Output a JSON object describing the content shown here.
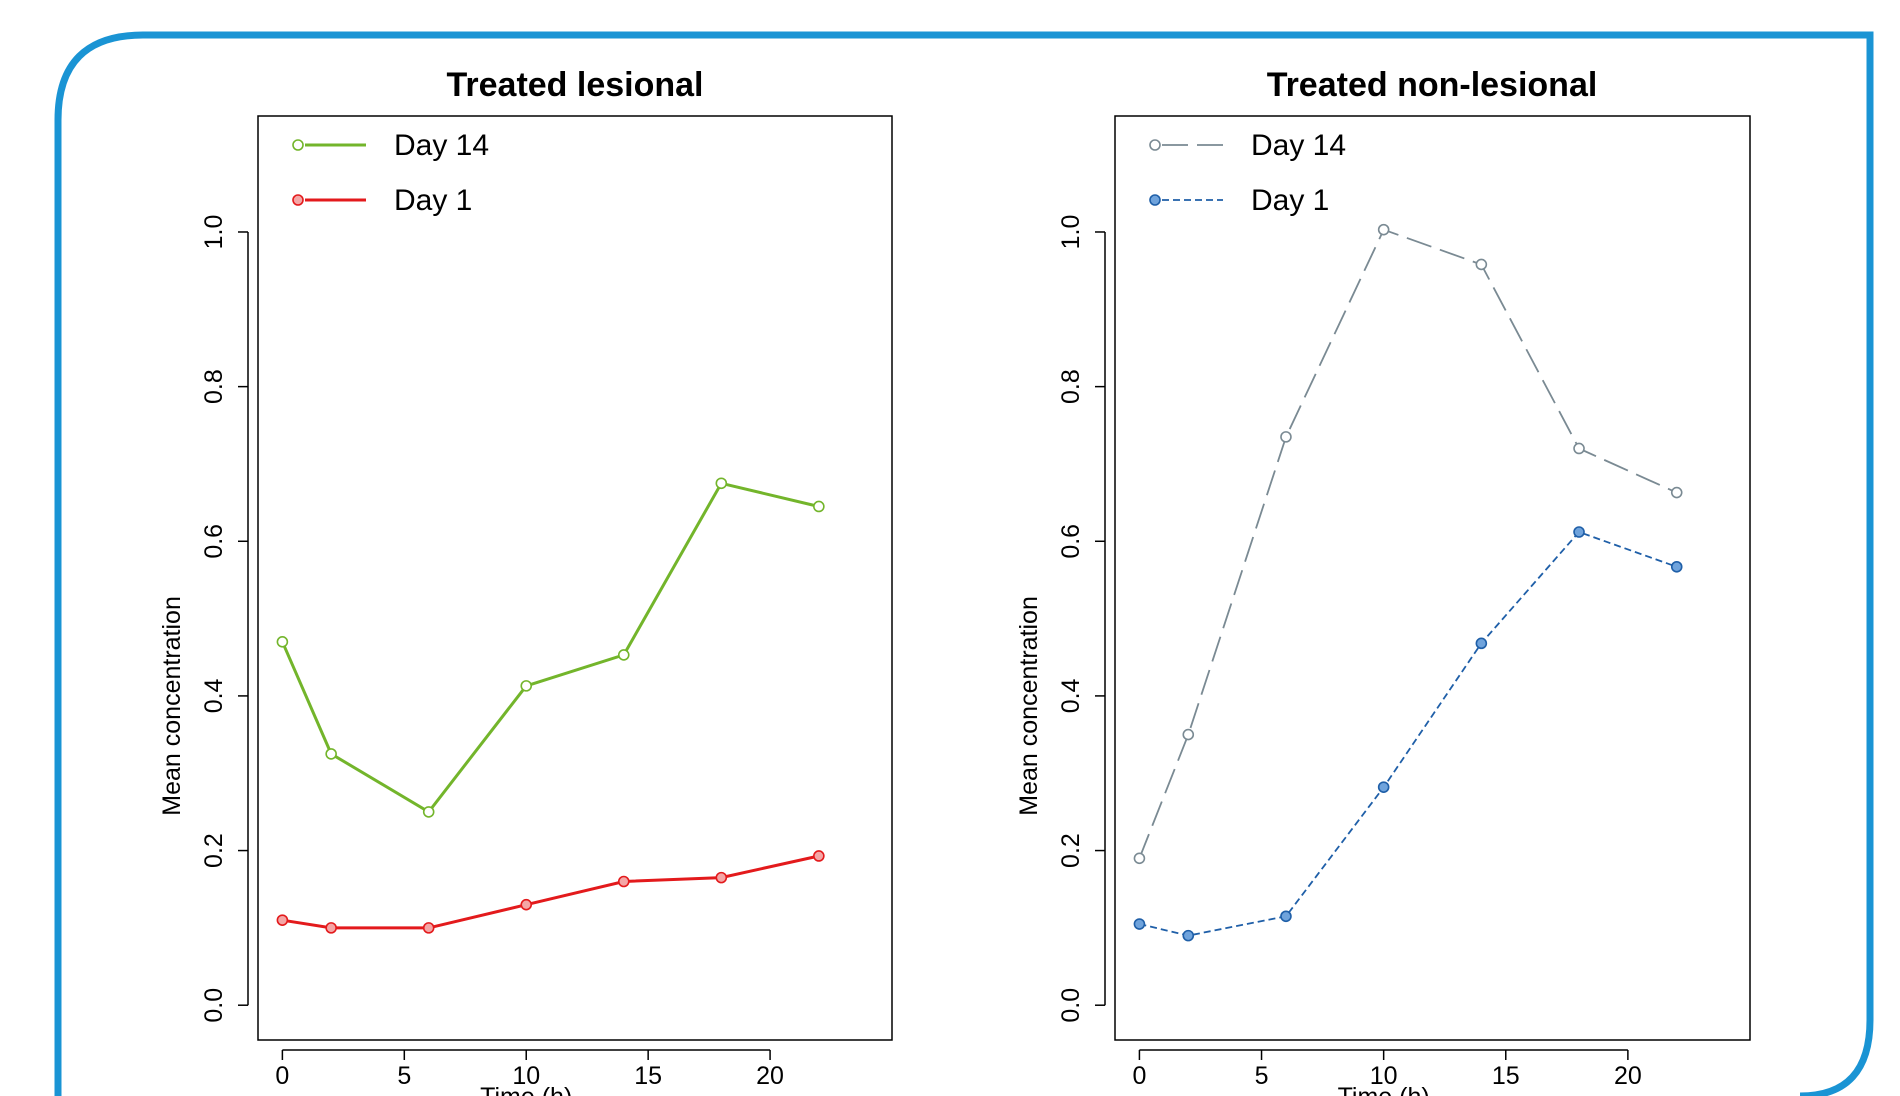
{
  "chart_data": [
    {
      "type": "line",
      "title": "Treated lesional",
      "xlabel": "Time (h)",
      "ylabel": "Mean concentration",
      "xlim": [
        -1,
        25
      ],
      "ylim": [
        -0.045,
        1.15
      ],
      "xticks": [
        0,
        5,
        10,
        15,
        20
      ],
      "yticks": [
        0.0,
        0.2,
        0.4,
        0.6,
        0.8,
        1.0
      ],
      "xtick_labels": [
        "0",
        "5",
        "10",
        "15",
        "20"
      ],
      "ytick_labels": [
        "0.0",
        "0.2",
        "0.4",
        "0.6",
        "0.8",
        "1.0"
      ],
      "grid": false,
      "legend_position": "top-left",
      "x": [
        0,
        2,
        6,
        10,
        14,
        18,
        22
      ],
      "series": [
        {
          "name": "Day 14",
          "color": "#73b52b",
          "dash": "solid",
          "marker_fill": "#ffffff",
          "values": [
            0.47,
            0.325,
            0.25,
            0.413,
            0.453,
            0.675,
            0.645
          ]
        },
        {
          "name": "Day 1",
          "color": "#e31a1c",
          "dash": "solid",
          "marker_fill": "#f4a6a6",
          "values": [
            0.11,
            0.1,
            0.1,
            0.13,
            0.16,
            0.165,
            0.193
          ]
        }
      ]
    },
    {
      "type": "line",
      "title": "Treated non-lesional",
      "xlabel": "Time (h)",
      "ylabel": "Mean concentration",
      "xlim": [
        -1,
        25
      ],
      "ylim": [
        -0.045,
        1.15
      ],
      "xticks": [
        0,
        5,
        10,
        15,
        20
      ],
      "yticks": [
        0.0,
        0.2,
        0.4,
        0.6,
        0.8,
        1.0
      ],
      "xtick_labels": [
        "0",
        "5",
        "10",
        "15",
        "20"
      ],
      "ytick_labels": [
        "0.0",
        "0.2",
        "0.4",
        "0.6",
        "0.8",
        "1.0"
      ],
      "grid": false,
      "legend_position": "top-left",
      "x": [
        0,
        2,
        6,
        10,
        14,
        18,
        22
      ],
      "series": [
        {
          "name": "Day 14",
          "color": "#7a8a93",
          "dash": "long-dash",
          "marker_fill": "#ffffff",
          "values": [
            0.19,
            0.35,
            0.735,
            1.003,
            0.958,
            0.72,
            0.663
          ]
        },
        {
          "name": "Day 1",
          "color": "#1f5fa8",
          "dash": "short-dash",
          "marker_fill": "#6fa3dc",
          "values": [
            0.105,
            0.09,
            0.115,
            0.282,
            0.468,
            0.612,
            0.567
          ]
        }
      ]
    }
  ],
  "frame_color": "#1a94d4"
}
